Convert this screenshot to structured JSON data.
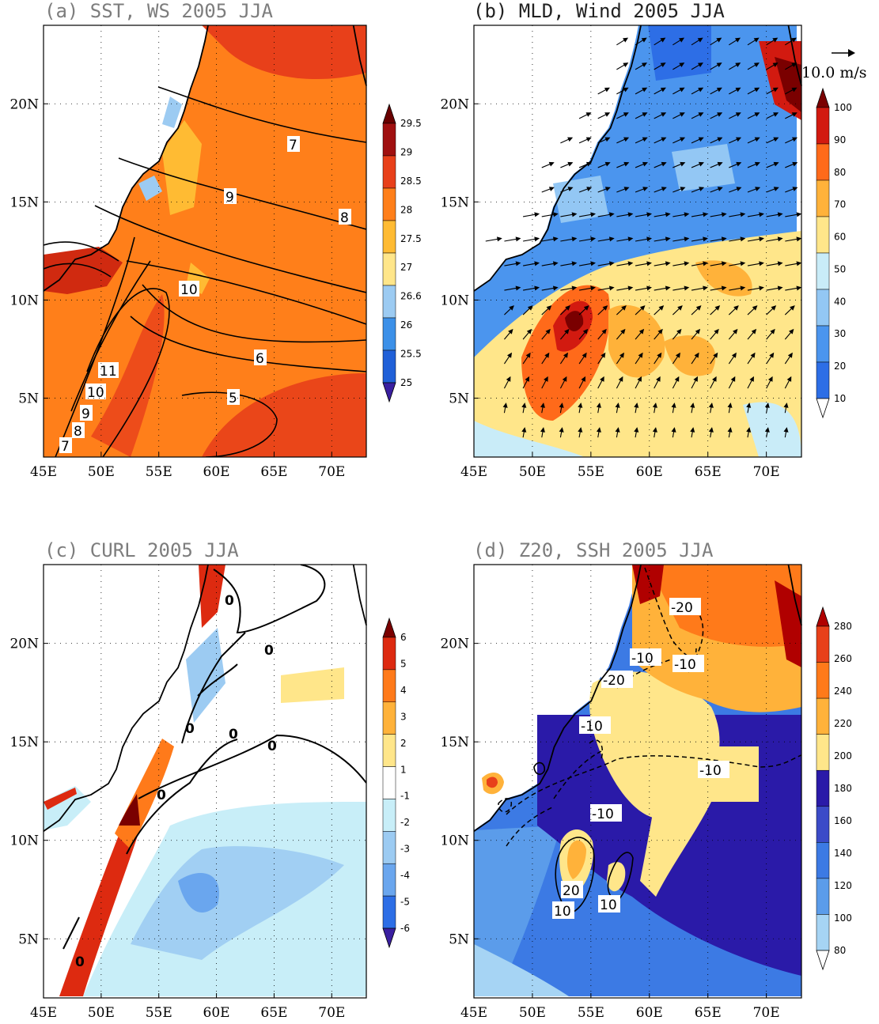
{
  "panels": [
    {
      "title": "(a) SST, WS 2005 JJA",
      "colorbar": [
        "29.5",
        "29",
        "28.5",
        "28",
        "27.5",
        "27",
        "26.6",
        "26",
        "25.5",
        "25"
      ],
      "contour_labels": [
        "7",
        "9",
        "8",
        "10",
        "11",
        "10",
        "9",
        "8",
        "7",
        "6",
        "5"
      ]
    },
    {
      "title": "(b) MLD, Wind 2005 JJA",
      "colorbar": [
        "100",
        "90",
        "80",
        "70",
        "60",
        "50",
        "40",
        "30",
        "20",
        "10"
      ],
      "vector_key": "10.0 m/s"
    },
    {
      "title": "(c) CURL 2005 JJA",
      "colorbar": [
        "6",
        "5",
        "4",
        "3",
        "2",
        "1",
        "-1",
        "-2",
        "-3",
        "-4",
        "-5",
        "-6"
      ],
      "contour_labels": [
        "0",
        "0",
        "0",
        "0",
        "0",
        "0",
        "0"
      ]
    },
    {
      "title": "(d) Z20, SSH 2005 JJA",
      "colorbar": [
        "280",
        "260",
        "240",
        "220",
        "200",
        "180",
        "160",
        "140",
        "120",
        "100",
        "80"
      ],
      "contour_labels": [
        "-20",
        "-10",
        "-10",
        "-20",
        "-10",
        "-10",
        "-10",
        "20",
        "10",
        "10"
      ]
    }
  ],
  "x_ticks": [
    "45E",
    "50E",
    "55E",
    "60E",
    "65E",
    "70E"
  ],
  "y_ticks": [
    "20N",
    "15N",
    "10N",
    "5N"
  ],
  "colors": {
    "sst": [
      "#3a1fa0",
      "#2060d8",
      "#3c90e8",
      "#9ccbf2",
      "#ffe68a",
      "#ffbb33",
      "#ff7f1a",
      "#e8401a",
      "#a01010",
      "#6a0000"
    ],
    "mld": [
      "#4b2dbd",
      "#2d6ee6",
      "#4b95ee",
      "#93c7f4",
      "#c9ecf8",
      "#ffe68a",
      "#ffb23a",
      "#ff6a1a",
      "#d21a10",
      "#7a0000"
    ],
    "curl": [
      "#3a1fa0",
      "#2d6ee6",
      "#6aa6ee",
      "#9ccbf2",
      "#c8eef8",
      "#ffffff",
      "#ffe68a",
      "#ffb23a",
      "#ff7a1a",
      "#dd2a10",
      "#7a0000"
    ],
    "z20": [
      "#c9ecf8",
      "#a6d4f4",
      "#5b9cea",
      "#3c7ae4",
      "#3b4bc8",
      "#2a1aa8",
      "#ffe68a",
      "#ffb23a",
      "#ff7a1a",
      "#e8401a",
      "#b00000"
    ]
  }
}
